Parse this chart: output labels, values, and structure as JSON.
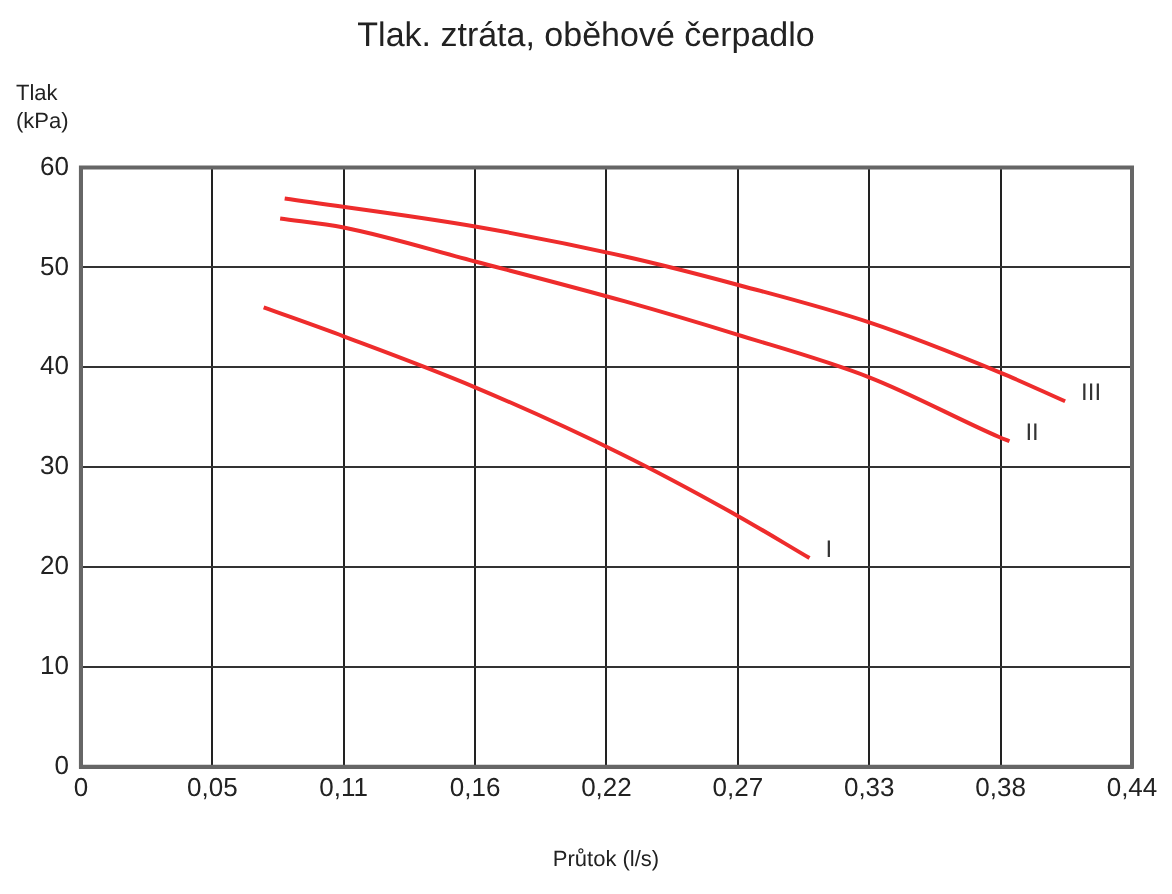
{
  "chart_data": {
    "type": "line",
    "title": "Tlak. ztráta, oběhové čerpadlo",
    "xlabel": "Průtok (l/s)",
    "ylabel": "Tlak\n(kPa)",
    "xlim": [
      0,
      0.44
    ],
    "xticks": [
      0,
      {
        "value": 0.055,
        "label": "0,05"
      },
      {
        "value": 0.11,
        "label": "0,11"
      },
      {
        "value": 0.165,
        "label": "0,16"
      },
      {
        "value": 0.22,
        "label": "0,22"
      },
      {
        "value": 0.275,
        "label": "0,27"
      },
      {
        "value": 0.33,
        "label": "0,33"
      },
      {
        "value": 0.385,
        "label": "0,38"
      },
      {
        "value": 0.44,
        "label": "0,44"
      }
    ],
    "ylim": [
      0,
      60
    ],
    "yticks": [
      0,
      10,
      20,
      30,
      40,
      50,
      60
    ],
    "grid": true,
    "legend": false,
    "marker": "none",
    "line_style": "solid",
    "series": [
      {
        "name": "I",
        "color": "#ee2c2c",
        "x": [
          0.0765,
          0.11,
          0.165,
          0.2264,
          0.2744,
          0.305
        ],
        "values": [
          46.0,
          43.1,
          38.0,
          31.3,
          25.2,
          20.9
        ]
      },
      {
        "name": "II",
        "color": "#ee2c2c",
        "x": [
          0.0834,
          0.11,
          0.165,
          0.2278,
          0.2744,
          0.33,
          0.3846,
          0.3887
        ],
        "values": [
          54.9,
          54.0,
          50.6,
          46.6,
          43.3,
          39.0,
          33.0,
          32.6
        ]
      },
      {
        "name": "III",
        "color": "#ee2c2c",
        "x": [
          0.0853,
          0.165,
          0.2278,
          0.2744,
          0.33,
          0.3846,
          0.412
        ],
        "values": [
          56.9,
          54.1,
          51.1,
          48.3,
          44.5,
          39.5,
          36.6
        ]
      }
    ]
  }
}
